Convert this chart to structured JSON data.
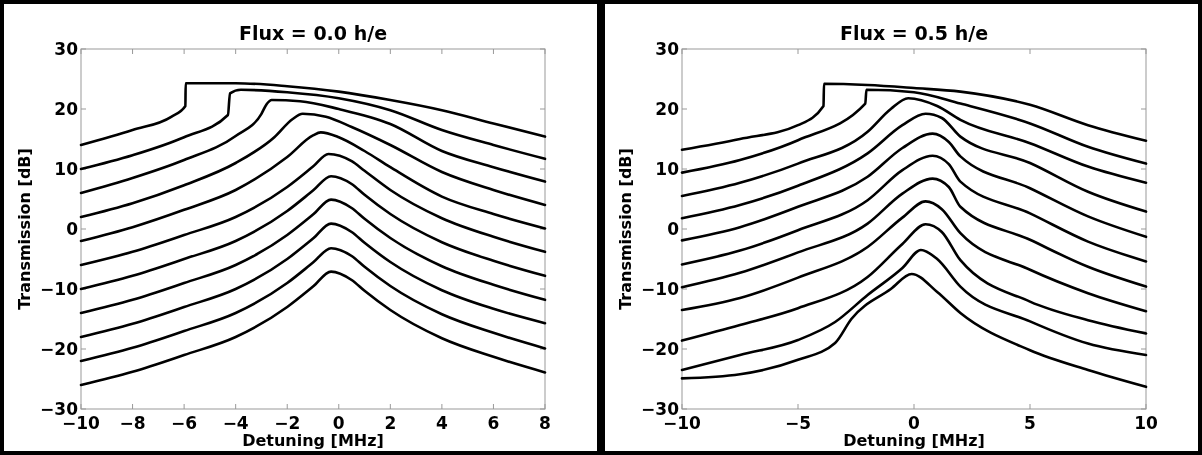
{
  "chart_data": [
    {
      "type": "line",
      "title": "Flux = 0.0 h/e",
      "xlabel": "Detuning [MHz]",
      "ylabel": "Transmission [dB]",
      "xlim": [
        -10,
        8
      ],
      "xticks": [
        {
          "value": -10,
          "label": "−10"
        },
        {
          "value": -8,
          "label": "−8"
        },
        {
          "value": -6,
          "label": "−6"
        },
        {
          "value": -4,
          "label": "−4"
        },
        {
          "value": -2,
          "label": "−2"
        },
        0,
        2,
        4,
        6,
        8
      ],
      "ylim": [
        -30,
        30
      ],
      "yticks": [
        {
          "value": -30,
          "label": "−30"
        },
        {
          "value": -20,
          "label": "−20"
        },
        {
          "value": -10,
          "label": "−10"
        },
        0,
        10,
        20,
        30
      ],
      "grid": false,
      "series": [
        {
          "color": "#000000",
          "x": [
            -10,
            -8,
            -6.5,
            -5.95,
            -5.94,
            -4,
            -2,
            0,
            2,
            4,
            6,
            8
          ],
          "values": [
            14,
            16.5,
            18.7,
            20.5,
            24.3,
            24.3,
            23.8,
            22.9,
            21.5,
            19.8,
            17.6,
            15.4
          ]
        },
        {
          "color": "#000000",
          "x": [
            -10,
            -8,
            -6,
            -4.3,
            -4.22,
            -3.8,
            -2,
            0,
            2,
            4,
            6,
            8
          ],
          "values": [
            10,
            12.3,
            15.3,
            19,
            22.6,
            23.2,
            22.8,
            21.8,
            19.8,
            16.5,
            14,
            11.7
          ]
        },
        {
          "color": "#000000",
          "x": [
            -10,
            -8,
            -6,
            -4,
            -3,
            -2.8,
            -2.6,
            -1.5,
            0,
            2,
            4,
            6,
            8
          ],
          "values": [
            6,
            8.5,
            11.5,
            15.5,
            19.2,
            20.8,
            21.5,
            21.3,
            20,
            17.5,
            13,
            10.3,
            7.9
          ]
        },
        {
          "color": "#000000",
          "x": [
            -10,
            -8,
            -6,
            -4,
            -2.5,
            -1.8,
            -1.4,
            -0.5,
            0.5,
            2,
            4,
            6,
            8
          ],
          "values": [
            2,
            4.3,
            7.3,
            11,
            15.3,
            18.3,
            19.2,
            18.7,
            17,
            14,
            9.5,
            6.5,
            4
          ]
        },
        {
          "color": "#000000",
          "x": [
            -10,
            -8,
            -6,
            -4,
            -2,
            -1,
            -0.7,
            0,
            1,
            2,
            4,
            6,
            8
          ],
          "values": [
            -2,
            0.3,
            3.2,
            6.5,
            12,
            15.6,
            16.1,
            15.3,
            13,
            10.3,
            5.4,
            2.5,
            0.1
          ]
        },
        {
          "color": "#000000",
          "x": [
            -10,
            -8,
            -6,
            -4,
            -2,
            -1,
            -0.4,
            0.5,
            1,
            2,
            4,
            6,
            8
          ],
          "values": [
            -6,
            -3.8,
            -1,
            2,
            7,
            10.4,
            12.5,
            11.3,
            9.7,
            6.5,
            1.8,
            -1.3,
            -3.8
          ]
        },
        {
          "color": "#000000",
          "x": [
            -10,
            -8,
            -6,
            -4,
            -2,
            -1,
            -0.3,
            0.5,
            1,
            2,
            4,
            6,
            8
          ],
          "values": [
            -10,
            -7.8,
            -5,
            -2,
            3,
            6.4,
            8.8,
            7.5,
            5.7,
            2.5,
            -2.2,
            -5.3,
            -7.8
          ]
        },
        {
          "color": "#000000",
          "x": [
            -10,
            -8,
            -6,
            -4,
            -2,
            -1,
            -0.3,
            0.5,
            1,
            2,
            4,
            6,
            8
          ],
          "values": [
            -14,
            -11.8,
            -9,
            -6,
            -1,
            2.4,
            4.9,
            3.5,
            1.7,
            -1.5,
            -6.2,
            -9.3,
            -11.8
          ]
        },
        {
          "color": "#000000",
          "x": [
            -10,
            -8,
            -6,
            -4,
            -2,
            -1,
            -0.3,
            0.5,
            1,
            2,
            4,
            6,
            8
          ],
          "values": [
            -18,
            -15.8,
            -13,
            -10,
            -5,
            -1.6,
            0.9,
            -0.5,
            -2.3,
            -5.5,
            -10.2,
            -13.3,
            -15.7
          ]
        },
        {
          "color": "#000000",
          "x": [
            -10,
            -8,
            -6,
            -4,
            -2,
            -1,
            -0.3,
            0.5,
            1,
            2,
            4,
            6,
            8
          ],
          "values": [
            -22,
            -19.8,
            -17,
            -14,
            -9,
            -5.6,
            -3.2,
            -4.5,
            -6.3,
            -9.5,
            -14.2,
            -17.3,
            -19.9
          ]
        },
        {
          "color": "#000000",
          "x": [
            -10,
            -8,
            -6,
            -4,
            -2,
            -1,
            -0.3,
            0.5,
            1,
            2,
            4,
            6,
            8
          ],
          "values": [
            -26,
            -23.8,
            -21,
            -18,
            -13,
            -9.6,
            -7.1,
            -8.5,
            -10.3,
            -13.5,
            -18.2,
            -21.3,
            -23.9
          ]
        }
      ]
    },
    {
      "type": "line",
      "title": "Flux = 0.5 h/e",
      "xlabel": "Detuning [MHz]",
      "ylabel": "Transmission [dB]",
      "xlim": [
        -10,
        10
      ],
      "xticks": [
        {
          "value": -10,
          "label": "−10"
        },
        {
          "value": -5,
          "label": "−5"
        },
        0,
        5,
        10
      ],
      "ylim": [
        -30,
        30
      ],
      "yticks": [
        {
          "value": -30,
          "label": "−30"
        },
        {
          "value": -20,
          "label": "−20"
        },
        {
          "value": -10,
          "label": "−10"
        },
        0,
        10,
        20,
        30
      ],
      "grid": false,
      "series": [
        {
          "color": "#000000",
          "x": [
            -10,
            -7.5,
            -5,
            -3.9,
            -3.88,
            -2,
            0,
            2,
            5,
            7.5,
            10
          ],
          "values": [
            13.2,
            15,
            17.3,
            20.5,
            24.2,
            24,
            23.5,
            22.9,
            20.7,
            17.3,
            14.7
          ]
        },
        {
          "color": "#000000",
          "x": [
            -10,
            -7.5,
            -5,
            -2.1,
            -2.05,
            0,
            2,
            5,
            7.5,
            10
          ],
          "values": [
            9.4,
            11.5,
            14.8,
            20.9,
            23.2,
            22.8,
            20.9,
            17.6,
            13.7,
            10.9
          ]
        },
        {
          "color": "#000000",
          "x": [
            -10,
            -7.5,
            -5,
            -2,
            -1,
            -0.25,
            1,
            2,
            5,
            7.5,
            10
          ],
          "values": [
            5.5,
            7.7,
            10.9,
            16.2,
            20,
            21.8,
            20.5,
            18.2,
            14.3,
            10.4,
            7.7
          ]
        },
        {
          "color": "#000000",
          "x": [
            -10,
            -7.5,
            -5,
            -2,
            -0.5,
            0.5,
            1.2,
            2,
            5,
            7.5,
            10
          ],
          "values": [
            1.8,
            4,
            7.2,
            12.6,
            17.3,
            19.2,
            18.5,
            15.4,
            11,
            6.2,
            2.9
          ]
        },
        {
          "color": "#000000",
          "x": [
            -10,
            -7.5,
            -5,
            -2,
            -0.5,
            0.8,
            1.5,
            2,
            5,
            7.5,
            10
          ],
          "values": [
            -1.9,
            0.3,
            3.7,
            8.7,
            13.5,
            15.9,
            14.5,
            12.1,
            6.8,
            2.1,
            -1.3
          ]
        },
        {
          "color": "#000000",
          "x": [
            -10,
            -7.5,
            -5,
            -2,
            -0.5,
            0.8,
            1.5,
            2,
            5,
            7.5,
            10
          ],
          "values": [
            -5.9,
            -3.6,
            -0.2,
            4.8,
            9.8,
            12.2,
            10.8,
            7.9,
            2.6,
            -2.1,
            -5.4
          ]
        },
        {
          "color": "#000000",
          "x": [
            -10,
            -7.5,
            -5,
            -2,
            -0.5,
            0.8,
            1.5,
            2,
            5,
            7.5,
            10
          ],
          "values": [
            -9.7,
            -7.3,
            -3.9,
            0.9,
            5.9,
            8.4,
            7,
            3.7,
            -1.8,
            -6.3,
            -9.6
          ]
        },
        {
          "color": "#000000",
          "x": [
            -10,
            -7.5,
            -5,
            -2,
            -0.5,
            0.5,
            1.2,
            2,
            5,
            7.5,
            10
          ],
          "values": [
            -13.5,
            -11.5,
            -8.1,
            -3,
            1.9,
            4.6,
            3.3,
            -0.7,
            -6.8,
            -10.7,
            -13.7
          ]
        },
        {
          "color": "#000000",
          "x": [
            -10,
            -7.5,
            -5,
            -2,
            -0.5,
            0.5,
            1.2,
            2,
            5,
            7.5,
            10
          ],
          "values": [
            -18.6,
            -16,
            -13.2,
            -8,
            -2.5,
            0.8,
            -0.5,
            -5.2,
            -12.1,
            -15.2,
            -17.4
          ]
        },
        {
          "color": "#000000",
          "x": [
            -10,
            -7.5,
            -5,
            -3.4,
            -2,
            -0.5,
            0.3,
            1,
            2,
            5,
            7.5,
            10
          ],
          "values": [
            -23.5,
            -21,
            -18.5,
            -15.5,
            -11,
            -6.5,
            -3.5,
            -5,
            -9.6,
            -15.4,
            -19.1,
            -21
          ]
        },
        {
          "color": "#000000",
          "x": [
            -10,
            -7.5,
            -5,
            -3.4,
            -2.7,
            -1,
            -0.1,
            1,
            2,
            5,
            7.5,
            10
          ],
          "values": [
            -24.9,
            -24.2,
            -21.8,
            -19,
            -15,
            -10,
            -7.5,
            -10.5,
            -14,
            -20.2,
            -23.5,
            -26.3
          ]
        }
      ]
    }
  ]
}
